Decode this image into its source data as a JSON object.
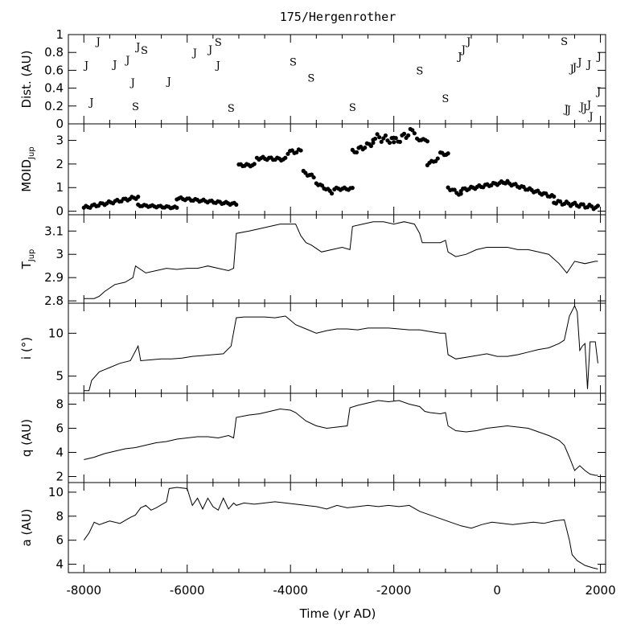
{
  "title": "175/Hergenrother",
  "xlabel": "Time (yr AD)",
  "chart_data": [
    {
      "type": "scatter",
      "ylabel": "Dist. (AU)",
      "ylim": [
        0,
        1
      ],
      "yticks": [
        "0",
        "0.2",
        "0.4",
        "0.6",
        "0.8",
        "1"
      ],
      "xlim": [
        -8300,
        2100
      ],
      "markers": [
        {
          "x": -7720,
          "y": 0.93,
          "label": "J"
        },
        {
          "x": -7950,
          "y": 0.66,
          "label": "J"
        },
        {
          "x": -7850,
          "y": 0.25,
          "label": "J"
        },
        {
          "x": -7400,
          "y": 0.67,
          "label": "J"
        },
        {
          "x": -7150,
          "y": 0.72,
          "label": "J"
        },
        {
          "x": -7050,
          "y": 0.47,
          "label": "J"
        },
        {
          "x": -6950,
          "y": 0.87,
          "label": "J"
        },
        {
          "x": -6830,
          "y": 0.83,
          "label": "S"
        },
        {
          "x": -7000,
          "y": 0.2,
          "label": "S"
        },
        {
          "x": -6350,
          "y": 0.48,
          "label": "J"
        },
        {
          "x": -5850,
          "y": 0.8,
          "label": "J"
        },
        {
          "x": -5550,
          "y": 0.84,
          "label": "J"
        },
        {
          "x": -5400,
          "y": 0.92,
          "label": "S"
        },
        {
          "x": -5400,
          "y": 0.66,
          "label": "J"
        },
        {
          "x": -5150,
          "y": 0.18,
          "label": "S"
        },
        {
          "x": -3950,
          "y": 0.7,
          "label": "S"
        },
        {
          "x": -3600,
          "y": 0.52,
          "label": "S"
        },
        {
          "x": -2800,
          "y": 0.19,
          "label": "S"
        },
        {
          "x": -1500,
          "y": 0.6,
          "label": "S"
        },
        {
          "x": -1000,
          "y": 0.29,
          "label": "S"
        },
        {
          "x": -720,
          "y": 0.76,
          "label": "J"
        },
        {
          "x": -650,
          "y": 0.84,
          "label": "J"
        },
        {
          "x": -550,
          "y": 0.93,
          "label": "J"
        },
        {
          "x": 1300,
          "y": 0.93,
          "label": "S"
        },
        {
          "x": 1450,
          "y": 0.62,
          "label": "J"
        },
        {
          "x": 1500,
          "y": 0.64,
          "label": "J"
        },
        {
          "x": 1600,
          "y": 0.7,
          "label": "J"
        },
        {
          "x": 1780,
          "y": 0.67,
          "label": "J"
        },
        {
          "x": 1980,
          "y": 0.76,
          "label": "J"
        },
        {
          "x": 1970,
          "y": 0.37,
          "label": "J"
        },
        {
          "x": 1340,
          "y": 0.17,
          "label": "J"
        },
        {
          "x": 1390,
          "y": 0.16,
          "label": "J"
        },
        {
          "x": 1640,
          "y": 0.2,
          "label": "J"
        },
        {
          "x": 1700,
          "y": 0.18,
          "label": "J"
        },
        {
          "x": 1780,
          "y": 0.22,
          "label": "J"
        },
        {
          "x": 1820,
          "y": 0.09,
          "label": "J"
        }
      ]
    },
    {
      "type": "scatter",
      "ylabel": "MOID",
      "ylabel_sub": "Jup",
      "ylim": [
        -0.15,
        3.7
      ],
      "yticks": [
        "0",
        "1",
        "2",
        "3"
      ],
      "xlim": [
        -8300,
        2100
      ],
      "segments": [
        {
          "x0": -8000,
          "x1": -6950,
          "y0": 0.15,
          "y1": 0.6,
          "wiggle": 0.06
        },
        {
          "x0": -6950,
          "x1": -6200,
          "y0": 0.25,
          "y1": 0.15,
          "wiggle": 0.04
        },
        {
          "x0": -6200,
          "x1": -5050,
          "y0": 0.55,
          "y1": 0.3,
          "wiggle": 0.05
        },
        {
          "x0": -5000,
          "x1": -4700,
          "y0": 1.95,
          "y1": 1.95,
          "wiggle": 0.05
        },
        {
          "x0": -4650,
          "x1": -4100,
          "y0": 2.25,
          "y1": 2.2,
          "wiggle": 0.06
        },
        {
          "x0": -4050,
          "x1": -3800,
          "y0": 2.5,
          "y1": 2.55,
          "wiggle": 0.08
        },
        {
          "x0": -3750,
          "x1": -3550,
          "y0": 1.65,
          "y1": 1.45,
          "wiggle": 0.06
        },
        {
          "x0": -3500,
          "x1": -3200,
          "y0": 1.2,
          "y1": 0.8,
          "wiggle": 0.05
        },
        {
          "x0": -3150,
          "x1": -2800,
          "y0": 0.95,
          "y1": 0.95,
          "wiggle": 0.05
        },
        {
          "x0": -2800,
          "x1": -2400,
          "y0": 2.5,
          "y1": 2.9,
          "wiggle": 0.1
        },
        {
          "x0": -2400,
          "x1": -2000,
          "y0": 3.15,
          "y1": 3.0,
          "wiggle": 0.15
        },
        {
          "x0": -2000,
          "x1": -1600,
          "y0": 2.9,
          "y1": 3.45,
          "wiggle": 0.15
        },
        {
          "x0": -1550,
          "x1": -1350,
          "y0": 3.05,
          "y1": 3.0,
          "wiggle": 0.04
        },
        {
          "x0": -1350,
          "x1": -1150,
          "y0": 2.0,
          "y1": 2.2,
          "wiggle": 0.05
        },
        {
          "x0": -1100,
          "x1": -950,
          "y0": 2.45,
          "y1": 2.4,
          "wiggle": 0.05
        },
        {
          "x0": -950,
          "x1": -700,
          "y0": 1.0,
          "y1": 0.7,
          "wiggle": 0.06
        },
        {
          "x0": -700,
          "x1": 200,
          "y0": 0.9,
          "y1": 1.25,
          "wiggle": 0.06
        },
        {
          "x0": 200,
          "x1": 1100,
          "y0": 1.2,
          "y1": 0.6,
          "wiggle": 0.06
        },
        {
          "x0": 1100,
          "x1": 1950,
          "y0": 0.4,
          "y1": 0.15,
          "wiggle": 0.08
        }
      ]
    },
    {
      "type": "line",
      "ylabel": "T",
      "ylabel_sub": "Jup",
      "ylim": [
        2.79,
        3.17
      ],
      "yticks": [
        "2.8",
        "2.9",
        "3",
        "3.1"
      ],
      "xlim": [
        -8300,
        2100
      ],
      "x": [
        -8000,
        -7800,
        -7700,
        -7600,
        -7400,
        -7200,
        -7050,
        -7000,
        -6800,
        -6600,
        -6400,
        -6200,
        -6000,
        -5800,
        -5600,
        -5400,
        -5200,
        -5100,
        -5050,
        -4800,
        -4600,
        -4400,
        -4200,
        -4000,
        -3900,
        -3800,
        -3700,
        -3600,
        -3400,
        -3200,
        -3000,
        -2850,
        -2800,
        -2600,
        -2400,
        -2200,
        -2000,
        -1800,
        -1600,
        -1500,
        -1450,
        -1300,
        -1100,
        -1000,
        -950,
        -800,
        -600,
        -400,
        -200,
        0,
        200,
        400,
        600,
        800,
        1000,
        1200,
        1350,
        1500,
        1700,
        1900,
        1950
      ],
      "y": [
        2.81,
        2.81,
        2.82,
        2.84,
        2.87,
        2.88,
        2.9,
        2.95,
        2.92,
        2.93,
        2.94,
        2.935,
        2.94,
        2.94,
        2.95,
        2.94,
        2.93,
        2.94,
        3.09,
        3.1,
        3.11,
        3.12,
        3.13,
        3.13,
        3.13,
        3.08,
        3.05,
        3.04,
        3.01,
        3.02,
        3.03,
        3.02,
        3.12,
        3.13,
        3.14,
        3.14,
        3.13,
        3.14,
        3.13,
        3.09,
        3.05,
        3.05,
        3.05,
        3.06,
        3.01,
        2.99,
        3.0,
        3.02,
        3.03,
        3.03,
        3.03,
        3.02,
        3.02,
        3.01,
        3.0,
        2.96,
        2.92,
        2.97,
        2.96,
        2.97,
        2.97
      ]
    },
    {
      "type": "line",
      "ylabel": "i (°)",
      "ylim": [
        3,
        13.5
      ],
      "yticks": [
        "5",
        "10"
      ],
      "xlim": [
        -8300,
        2100
      ],
      "x": [
        -8000,
        -7900,
        -7850,
        -7700,
        -7500,
        -7300,
        -7100,
        -6950,
        -6900,
        -6700,
        -6500,
        -6300,
        -6100,
        -5900,
        -5700,
        -5500,
        -5300,
        -5150,
        -5050,
        -4900,
        -4700,
        -4500,
        -4300,
        -4100,
        -4000,
        -3900,
        -3700,
        -3500,
        -3300,
        -3100,
        -2900,
        -2700,
        -2500,
        -2300,
        -2100,
        -1900,
        -1700,
        -1500,
        -1300,
        -1100,
        -1000,
        -950,
        -800,
        -600,
        -400,
        -200,
        0,
        200,
        400,
        600,
        800,
        1000,
        1200,
        1300,
        1400,
        1500,
        1550,
        1600,
        1650,
        1700,
        1750,
        1800,
        1900,
        1950
      ],
      "y": [
        3.3,
        3.3,
        4.5,
        5.5,
        6.0,
        6.5,
        6.8,
        8.5,
        6.8,
        6.9,
        7.0,
        7.0,
        7.1,
        7.3,
        7.4,
        7.5,
        7.6,
        8.5,
        11.8,
        11.9,
        11.9,
        11.9,
        11.8,
        12.0,
        11.5,
        11.0,
        10.5,
        10.0,
        10.3,
        10.5,
        10.5,
        10.4,
        10.6,
        10.6,
        10.6,
        10.5,
        10.4,
        10.4,
        10.2,
        10.0,
        10.0,
        7.5,
        7.0,
        7.2,
        7.4,
        7.6,
        7.3,
        7.3,
        7.5,
        7.8,
        8.1,
        8.3,
        8.8,
        9.2,
        12.0,
        13.2,
        12.5,
        8.0,
        8.5,
        8.8,
        3.5,
        9.0,
        9.0,
        6.5
      ]
    },
    {
      "type": "line",
      "ylabel": "q (AU)",
      "ylim": [
        1.5,
        8.9
      ],
      "yticks": [
        "2",
        "4",
        "6",
        "8"
      ],
      "xlim": [
        -8300,
        2100
      ],
      "x": [
        -8000,
        -7800,
        -7600,
        -7400,
        -7200,
        -7000,
        -6800,
        -6600,
        -6400,
        -6200,
        -6000,
        -5800,
        -5600,
        -5400,
        -5200,
        -5100,
        -5050,
        -4800,
        -4600,
        -4400,
        -4200,
        -4000,
        -3900,
        -3700,
        -3500,
        -3300,
        -3100,
        -2900,
        -2850,
        -2700,
        -2500,
        -2300,
        -2100,
        -1900,
        -1700,
        -1500,
        -1400,
        -1300,
        -1100,
        -1000,
        -950,
        -800,
        -600,
        -400,
        -200,
        0,
        200,
        400,
        600,
        800,
        1000,
        1200,
        1300,
        1400,
        1500,
        1600,
        1700,
        1800,
        1900,
        1950
      ],
      "y": [
        3.4,
        3.6,
        3.9,
        4.1,
        4.3,
        4.4,
        4.6,
        4.8,
        4.9,
        5.1,
        5.2,
        5.3,
        5.3,
        5.2,
        5.4,
        5.2,
        6.9,
        7.1,
        7.2,
        7.4,
        7.6,
        7.5,
        7.3,
        6.6,
        6.2,
        6.0,
        6.1,
        6.2,
        7.7,
        7.9,
        8.1,
        8.3,
        8.2,
        8.3,
        8.0,
        7.8,
        7.4,
        7.3,
        7.2,
        7.3,
        6.2,
        5.8,
        5.7,
        5.8,
        6.0,
        6.1,
        6.2,
        6.1,
        6.0,
        5.7,
        5.4,
        5.0,
        4.6,
        3.6,
        2.5,
        2.9,
        2.5,
        2.2,
        2.1,
        2.1
      ]
    },
    {
      "type": "line",
      "ylabel": "a (AU)",
      "ylim": [
        3.3,
        10.8
      ],
      "yticks": [
        "4",
        "6",
        "8",
        "10"
      ],
      "xlim": [
        -8300,
        2100
      ],
      "x": [
        -8000,
        -7900,
        -7800,
        -7700,
        -7500,
        -7300,
        -7100,
        -7000,
        -6900,
        -6800,
        -6700,
        -6600,
        -6400,
        -6350,
        -6200,
        -6000,
        -5900,
        -5800,
        -5700,
        -5600,
        -5500,
        -5400,
        -5300,
        -5200,
        -5100,
        -5050,
        -4900,
        -4700,
        -4500,
        -4300,
        -4100,
        -3900,
        -3700,
        -3500,
        -3300,
        -3100,
        -2900,
        -2700,
        -2500,
        -2300,
        -2100,
        -1900,
        -1700,
        -1500,
        -1300,
        -1100,
        -900,
        -700,
        -500,
        -300,
        -100,
        100,
        300,
        500,
        700,
        900,
        1100,
        1300,
        1400,
        1450,
        1550,
        1700,
        1850,
        1950
      ],
      "y": [
        6.0,
        6.6,
        7.5,
        7.3,
        7.6,
        7.4,
        7.9,
        8.1,
        8.7,
        8.9,
        8.5,
        8.7,
        9.2,
        10.3,
        10.4,
        10.3,
        8.9,
        9.5,
        8.6,
        9.5,
        8.8,
        8.5,
        9.5,
        8.6,
        9.1,
        8.9,
        9.1,
        9.0,
        9.1,
        9.2,
        9.1,
        9.0,
        8.9,
        8.8,
        8.6,
        8.9,
        8.7,
        8.8,
        8.9,
        8.8,
        8.9,
        8.8,
        8.9,
        8.4,
        8.1,
        7.8,
        7.5,
        7.2,
        7.0,
        7.3,
        7.5,
        7.4,
        7.3,
        7.4,
        7.5,
        7.4,
        7.6,
        7.7,
        6.0,
        4.8,
        4.3,
        3.9,
        3.7,
        3.6
      ]
    }
  ],
  "xaxis": {
    "xlim": [
      -8300,
      2100
    ],
    "ticks": [
      -8000,
      -6000,
      -4000,
      -2000,
      0,
      2000
    ],
    "tick_labels": [
      "-8000",
      "-6000",
      "-4000",
      "-2000",
      "0",
      "2000"
    ]
  }
}
